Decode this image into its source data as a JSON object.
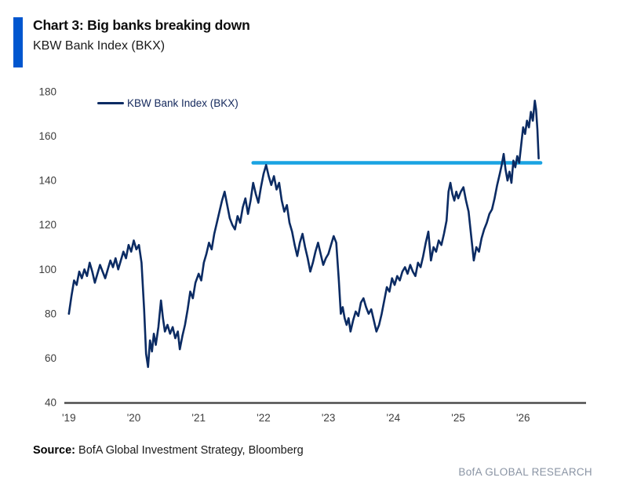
{
  "header": {
    "title": "Chart 3: Big banks breaking down",
    "subtitle": "KBW Bank Index (BKX)"
  },
  "legend": {
    "label": "KBW Bank Index (BKX)"
  },
  "footer": {
    "source_label": "Source:",
    "source_text": " BofA Global Investment Strategy, Bloomberg",
    "brand": "BofA GLOBAL RESEARCH"
  },
  "colors": {
    "accent_bar": "#0056cf",
    "series_navy": "#0b2b63",
    "resistance_cyan": "#1aa3e2",
    "axis_line": "#4d4d4d",
    "tick_label": "#3d3d3d",
    "legend_text": "#14285c",
    "brand_gray": "#8a94a4"
  },
  "chart_data": {
    "type": "line",
    "title": "KBW Bank Index (BKX)",
    "xlabel": "",
    "ylabel": "",
    "grid": "off",
    "legend_position": "top-left-inside",
    "xlim": [
      2018.93,
      2026.97
    ],
    "ylim": [
      40,
      180
    ],
    "y_ticks": [
      40,
      60,
      80,
      100,
      120,
      140,
      160,
      180
    ],
    "x_ticks": {
      "years": [
        2019,
        2020,
        2021,
        2022,
        2023,
        2024,
        2025,
        2026
      ],
      "labels": [
        "'19",
        "'20",
        "'21",
        "'22",
        "'23",
        "'24",
        "'25",
        "'26"
      ]
    },
    "series": [
      {
        "name": "KBW Bank Index (BKX)",
        "color": "#0b2b63",
        "points": [
          [
            2019.0,
            80
          ],
          [
            2019.04,
            88
          ],
          [
            2019.08,
            95
          ],
          [
            2019.12,
            93
          ],
          [
            2019.16,
            99
          ],
          [
            2019.2,
            96
          ],
          [
            2019.24,
            100
          ],
          [
            2019.28,
            97
          ],
          [
            2019.32,
            103
          ],
          [
            2019.36,
            99
          ],
          [
            2019.4,
            94
          ],
          [
            2019.44,
            98
          ],
          [
            2019.48,
            102
          ],
          [
            2019.52,
            99
          ],
          [
            2019.56,
            96
          ],
          [
            2019.6,
            100
          ],
          [
            2019.64,
            104
          ],
          [
            2019.68,
            101
          ],
          [
            2019.72,
            105
          ],
          [
            2019.76,
            100
          ],
          [
            2019.8,
            104
          ],
          [
            2019.84,
            108
          ],
          [
            2019.88,
            105
          ],
          [
            2019.92,
            111
          ],
          [
            2019.96,
            108
          ],
          [
            2020.0,
            113
          ],
          [
            2020.04,
            109
          ],
          [
            2020.08,
            111
          ],
          [
            2020.12,
            103
          ],
          [
            2020.16,
            82
          ],
          [
            2020.19,
            62
          ],
          [
            2020.22,
            56
          ],
          [
            2020.25,
            68
          ],
          [
            2020.28,
            63
          ],
          [
            2020.31,
            71
          ],
          [
            2020.34,
            66
          ],
          [
            2020.38,
            74
          ],
          [
            2020.42,
            86
          ],
          [
            2020.45,
            78
          ],
          [
            2020.48,
            72
          ],
          [
            2020.52,
            75
          ],
          [
            2020.56,
            71
          ],
          [
            2020.6,
            74
          ],
          [
            2020.64,
            69
          ],
          [
            2020.68,
            72
          ],
          [
            2020.71,
            64
          ],
          [
            2020.75,
            70
          ],
          [
            2020.79,
            75
          ],
          [
            2020.83,
            82
          ],
          [
            2020.87,
            90
          ],
          [
            2020.91,
            87
          ],
          [
            2020.95,
            94
          ],
          [
            2021.0,
            98
          ],
          [
            2021.04,
            95
          ],
          [
            2021.08,
            103
          ],
          [
            2021.12,
            107
          ],
          [
            2021.16,
            112
          ],
          [
            2021.2,
            109
          ],
          [
            2021.24,
            116
          ],
          [
            2021.28,
            121
          ],
          [
            2021.32,
            126
          ],
          [
            2021.36,
            131
          ],
          [
            2021.4,
            135
          ],
          [
            2021.44,
            129
          ],
          [
            2021.48,
            123
          ],
          [
            2021.52,
            120
          ],
          [
            2021.56,
            118
          ],
          [
            2021.6,
            124
          ],
          [
            2021.64,
            121
          ],
          [
            2021.68,
            128
          ],
          [
            2021.72,
            132
          ],
          [
            2021.76,
            125
          ],
          [
            2021.8,
            131
          ],
          [
            2021.84,
            139
          ],
          [
            2021.88,
            134
          ],
          [
            2021.92,
            130
          ],
          [
            2021.96,
            137
          ],
          [
            2022.0,
            143
          ],
          [
            2022.04,
            147
          ],
          [
            2022.08,
            142
          ],
          [
            2022.12,
            138
          ],
          [
            2022.16,
            142
          ],
          [
            2022.2,
            136
          ],
          [
            2022.24,
            139
          ],
          [
            2022.28,
            131
          ],
          [
            2022.32,
            126
          ],
          [
            2022.36,
            129
          ],
          [
            2022.4,
            121
          ],
          [
            2022.44,
            117
          ],
          [
            2022.48,
            111
          ],
          [
            2022.52,
            106
          ],
          [
            2022.56,
            112
          ],
          [
            2022.6,
            116
          ],
          [
            2022.64,
            110
          ],
          [
            2022.68,
            105
          ],
          [
            2022.72,
            99
          ],
          [
            2022.76,
            103
          ],
          [
            2022.8,
            108
          ],
          [
            2022.84,
            112
          ],
          [
            2022.88,
            107
          ],
          [
            2022.92,
            102
          ],
          [
            2022.96,
            105
          ],
          [
            2023.0,
            107
          ],
          [
            2023.04,
            111
          ],
          [
            2023.08,
            115
          ],
          [
            2023.12,
            112
          ],
          [
            2023.16,
            95
          ],
          [
            2023.19,
            80
          ],
          [
            2023.22,
            83
          ],
          [
            2023.25,
            78
          ],
          [
            2023.28,
            75
          ],
          [
            2023.31,
            78
          ],
          [
            2023.34,
            72
          ],
          [
            2023.38,
            77
          ],
          [
            2023.42,
            81
          ],
          [
            2023.46,
            79
          ],
          [
            2023.5,
            85
          ],
          [
            2023.54,
            87
          ],
          [
            2023.58,
            83
          ],
          [
            2023.62,
            80
          ],
          [
            2023.66,
            82
          ],
          [
            2023.7,
            77
          ],
          [
            2023.74,
            72
          ],
          [
            2023.78,
            75
          ],
          [
            2023.82,
            80
          ],
          [
            2023.86,
            86
          ],
          [
            2023.9,
            92
          ],
          [
            2023.94,
            90
          ],
          [
            2023.98,
            96
          ],
          [
            2024.02,
            93
          ],
          [
            2024.06,
            97
          ],
          [
            2024.1,
            95
          ],
          [
            2024.14,
            99
          ],
          [
            2024.18,
            101
          ],
          [
            2024.22,
            98
          ],
          [
            2024.26,
            102
          ],
          [
            2024.3,
            99
          ],
          [
            2024.34,
            97
          ],
          [
            2024.38,
            103
          ],
          [
            2024.42,
            101
          ],
          [
            2024.46,
            106
          ],
          [
            2024.5,
            112
          ],
          [
            2024.54,
            117
          ],
          [
            2024.58,
            104
          ],
          [
            2024.62,
            110
          ],
          [
            2024.66,
            108
          ],
          [
            2024.7,
            113
          ],
          [
            2024.74,
            111
          ],
          [
            2024.78,
            116
          ],
          [
            2024.82,
            122
          ],
          [
            2024.85,
            135
          ],
          [
            2024.88,
            139
          ],
          [
            2024.91,
            134
          ],
          [
            2024.94,
            131
          ],
          [
            2024.97,
            135
          ],
          [
            2025.0,
            132
          ],
          [
            2025.04,
            135
          ],
          [
            2025.08,
            137
          ],
          [
            2025.12,
            131
          ],
          [
            2025.16,
            126
          ],
          [
            2025.2,
            115
          ],
          [
            2025.24,
            104
          ],
          [
            2025.28,
            110
          ],
          [
            2025.32,
            108
          ],
          [
            2025.36,
            114
          ],
          [
            2025.4,
            118
          ],
          [
            2025.44,
            121
          ],
          [
            2025.48,
            125
          ],
          [
            2025.52,
            127
          ],
          [
            2025.56,
            132
          ],
          [
            2025.6,
            138
          ],
          [
            2025.64,
            143
          ],
          [
            2025.67,
            147
          ],
          [
            2025.7,
            152
          ],
          [
            2025.73,
            145
          ],
          [
            2025.76,
            140
          ],
          [
            2025.79,
            144
          ],
          [
            2025.82,
            139
          ],
          [
            2025.85,
            149
          ],
          [
            2025.88,
            146
          ],
          [
            2025.91,
            151
          ],
          [
            2025.94,
            148
          ],
          [
            2025.97,
            156
          ],
          [
            2026.0,
            164
          ],
          [
            2026.03,
            161
          ],
          [
            2026.06,
            167
          ],
          [
            2026.09,
            164
          ],
          [
            2026.12,
            171
          ],
          [
            2026.15,
            167
          ],
          [
            2026.18,
            176
          ],
          [
            2026.2,
            172
          ],
          [
            2026.22,
            163
          ],
          [
            2026.24,
            150
          ]
        ]
      }
    ],
    "annotations": [
      {
        "type": "hline",
        "name": "breakout-resistance-level",
        "value": 148,
        "x_start": 2021.84,
        "x_end": 2026.27,
        "color": "#1aa3e2"
      }
    ]
  }
}
